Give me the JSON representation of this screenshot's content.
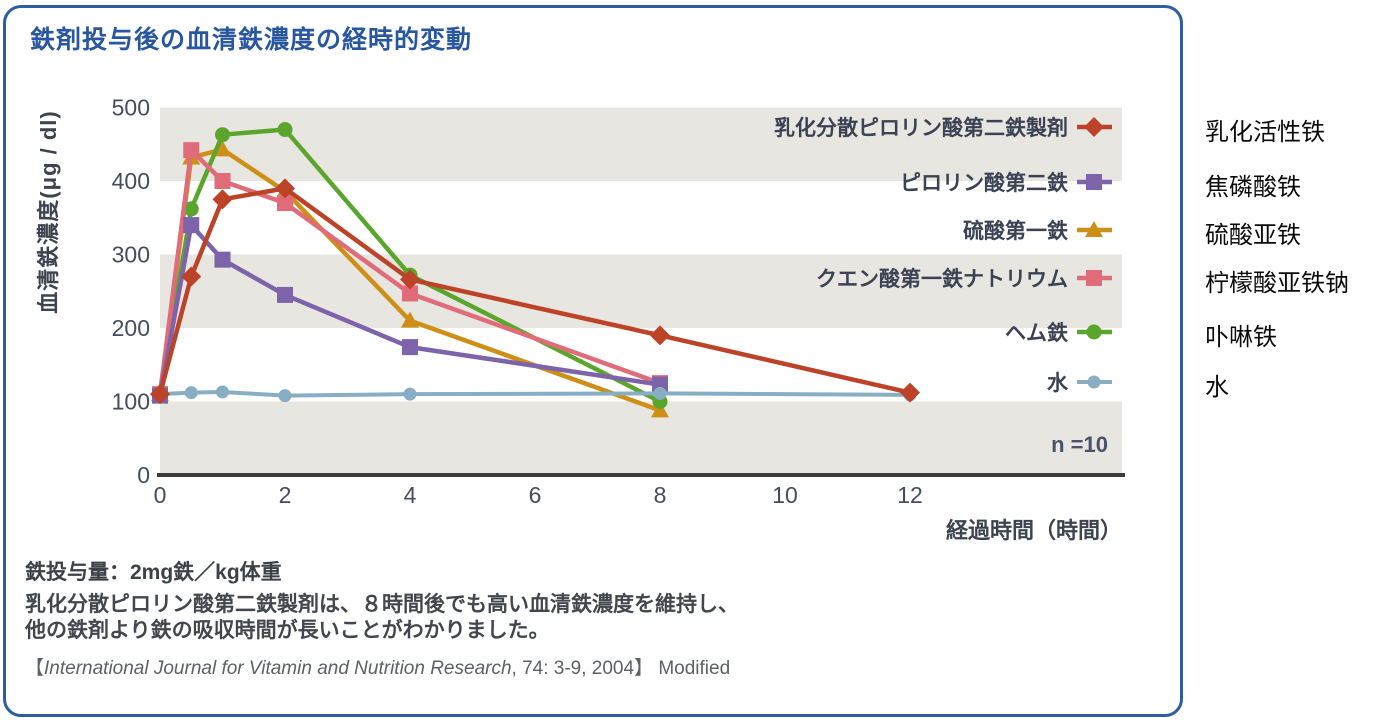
{
  "card": {
    "title": "鉄剤投与後の血清鉄濃度の経時的変動",
    "title_color": "#2857a0",
    "border_color": "#2e5da6"
  },
  "chart_data": {
    "type": "line",
    "title": "鉄剤投与後の血清鉄濃度の経時的変動",
    "xlabel": "経過時間（時間）",
    "ylabel": "血清鉄濃度(μg / dl)",
    "xlim": [
      0,
      12
    ],
    "ylim": [
      0,
      500
    ],
    "x_ticks": [
      0,
      2,
      4,
      6,
      8,
      10,
      12
    ],
    "y_ticks": [
      0,
      100,
      200,
      300,
      400,
      500
    ],
    "grid": false,
    "sample_size_note": "n =10",
    "legend_position": "inside-right",
    "band_color": "#e8e6e0",
    "background_bands": [
      [
        400,
        500
      ],
      [
        200,
        300
      ],
      [
        0,
        100
      ]
    ],
    "axis_color": "#3b3b3b",
    "series": [
      {
        "name": "乳化分散ピロリン酸第二鉄製剤",
        "translation": "乳化活性铁",
        "color": "#bc4327",
        "marker": "diamond",
        "marker_size": 10,
        "line_width": 4.5,
        "z": 6,
        "x": [
          0,
          0.5,
          1,
          2,
          4,
          8,
          12
        ],
        "y": [
          110,
          270,
          375,
          390,
          266,
          190,
          112
        ]
      },
      {
        "name": "ピロリン酸第二鉄",
        "translation": "焦磷酸铁",
        "color": "#7d63a9",
        "marker": "square",
        "marker_size": 8,
        "line_width": 4.5,
        "z": 4,
        "x": [
          0,
          0.5,
          1,
          2,
          4,
          8
        ],
        "y": [
          108,
          340,
          293,
          245,
          174,
          123
        ]
      },
      {
        "name": "硫酸第一鉄",
        "translation": "硫酸亚铁",
        "color": "#cd8f16",
        "marker": "triangle",
        "marker_size": 9,
        "line_width": 4.5,
        "z": 1,
        "x": [
          0,
          0.5,
          1,
          2,
          4,
          8
        ],
        "y": [
          110,
          432,
          443,
          386,
          210,
          88
        ]
      },
      {
        "name": "クエン酸第一鉄ナトリウム",
        "translation": "柠檬酸亚铁钠",
        "color": "#e06b79",
        "marker": "square",
        "marker_size": 8,
        "line_width": 4.5,
        "z": 3,
        "x": [
          0,
          0.5,
          1,
          2,
          4,
          8
        ],
        "y": [
          110,
          442,
          400,
          370,
          247,
          125
        ]
      },
      {
        "name": "ヘム鉄",
        "translation": "卟啉铁",
        "color": "#5aa62c",
        "marker": "circle",
        "marker_size": 7.5,
        "line_width": 4.5,
        "z": 2,
        "x": [
          0,
          0.5,
          1,
          2,
          4,
          8
        ],
        "y": [
          110,
          362,
          463,
          470,
          272,
          100
        ]
      },
      {
        "name": "水",
        "translation": "水",
        "color": "#88aec4",
        "marker": "circle",
        "marker_size": 6.5,
        "line_width": 4,
        "z": 5,
        "x": [
          0,
          0.5,
          1,
          2,
          4,
          8,
          12
        ],
        "y": [
          110,
          112,
          113,
          108,
          110,
          111,
          109
        ]
      }
    ]
  },
  "notes": {
    "dose": "鉄投与量：2mg鉄／kg体重",
    "body_lines": [
      "乳化分散ピロリン酸第二鉄製剤は、８時間後でも高い血清鉄濃度を維持し、",
      "他の鉄剤より鉄の吸収時間が長いことがわかりました。"
    ]
  },
  "citation": {
    "bracket_open": "【",
    "journal": "International Journal for Vitamin and Nutrition Research",
    "rest": ", 74: 3-9, 2004】 Modified"
  }
}
